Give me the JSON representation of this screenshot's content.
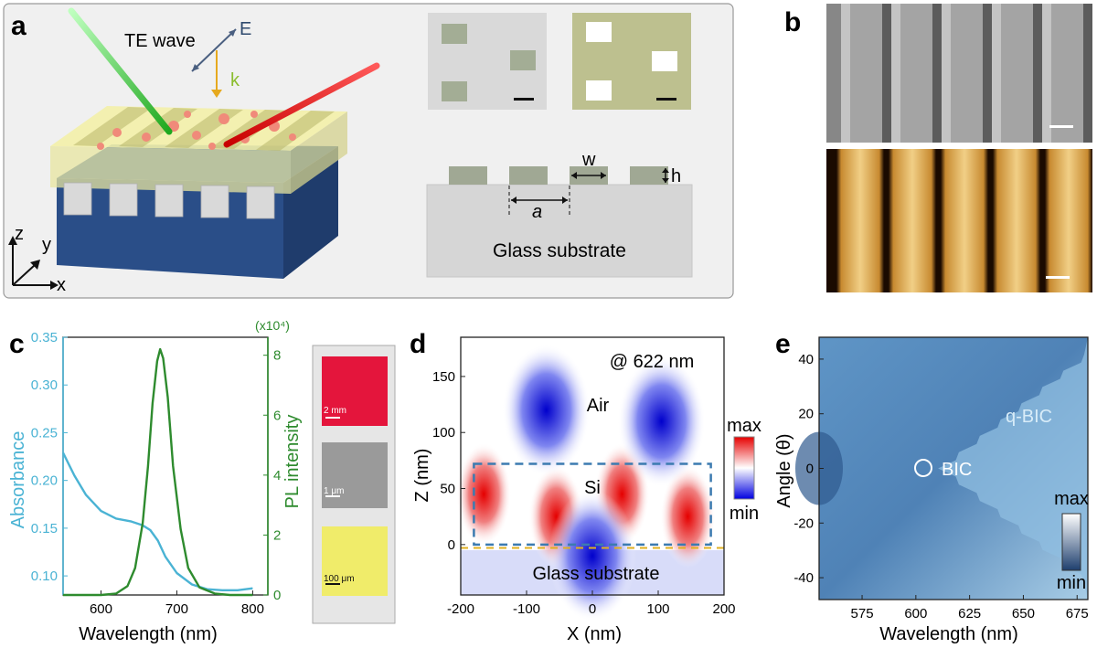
{
  "panel_labels": {
    "a": "a",
    "b": "b",
    "c": "c",
    "d": "d",
    "e": "e"
  },
  "panel_a": {
    "wave_label": "TE wave",
    "e_label": "E",
    "k_label": "k",
    "axis_z": "z",
    "axis_y": "y",
    "axis_x": "x",
    "w_label": "w",
    "h_label": "h",
    "a_label": "a",
    "substrate_label": "Glass substrate"
  },
  "panel_c": {
    "insets": [
      "2 mm",
      "1 μm",
      "100 μm"
    ],
    "colors": {
      "absorbance": "#4ab3d4",
      "pl": "#2e8b2e"
    }
  },
  "panel_d": {
    "wavelength_note": "@ 622 nm",
    "region_air": "Air",
    "region_si": "Si",
    "region_glass": "Glass substrate",
    "colorbar_max": "max",
    "colorbar_min": "min"
  },
  "panel_e": {
    "bic_label": "BIC",
    "qbic_label": "q-BIC",
    "colorbar_max": "max",
    "colorbar_min": "min"
  },
  "chart_data": [
    {
      "type": "line",
      "panel": "c",
      "xlabel": "Wavelength (nm)",
      "ylabel_left": "Absorbance",
      "ylabel_right": "PL intensity",
      "right_multiplier": "(x10⁴)",
      "xlim": [
        550,
        820
      ],
      "ylim_left": [
        0.08,
        0.35
      ],
      "ylim_right": [
        0,
        8.6
      ],
      "xticks": [
        600,
        700,
        800
      ],
      "yticks_left": [
        0.1,
        0.15,
        0.2,
        0.25,
        0.3,
        0.35
      ],
      "yticks_left_labels": [
        "0.10",
        "0.15",
        "0.20",
        "0.25",
        "0.30",
        "0.35"
      ],
      "yticks_right": [
        0,
        2,
        4,
        6,
        8
      ],
      "series": [
        {
          "name": "Absorbance",
          "axis": "left",
          "x": [
            550,
            565,
            580,
            600,
            620,
            640,
            655,
            665,
            675,
            685,
            700,
            720,
            740,
            760,
            780,
            800
          ],
          "y": [
            0.229,
            0.205,
            0.185,
            0.168,
            0.16,
            0.157,
            0.153,
            0.148,
            0.137,
            0.12,
            0.103,
            0.091,
            0.086,
            0.085,
            0.085,
            0.087
          ]
        },
        {
          "name": "PL intensity",
          "axis": "right",
          "x": [
            550,
            600,
            620,
            635,
            645,
            655,
            662,
            668,
            674,
            678,
            682,
            688,
            695,
            705,
            715,
            730,
            750,
            770,
            800
          ],
          "y": [
            0,
            0,
            0.05,
            0.3,
            0.9,
            2.4,
            4.3,
            6.4,
            7.8,
            8.2,
            7.9,
            6.6,
            4.3,
            2.2,
            0.9,
            0.25,
            0.05,
            0,
            0
          ]
        }
      ]
    },
    {
      "type": "heatmap",
      "panel": "d",
      "xlabel": "X (nm)",
      "ylabel": "Z (nm)",
      "xlim": [
        -200,
        200
      ],
      "ylim": [
        -45,
        185
      ],
      "xticks": [
        -200,
        -100,
        0,
        100,
        200
      ],
      "yticks": [
        0,
        50,
        100,
        150
      ],
      "lobes": [
        {
          "x": -165,
          "z": 45,
          "sign": "max"
        },
        {
          "x": -55,
          "z": 25,
          "sign": "max"
        },
        {
          "x": 45,
          "z": 45,
          "sign": "max"
        },
        {
          "x": 145,
          "z": 25,
          "sign": "max"
        },
        {
          "x": -70,
          "z": 120,
          "sign": "min"
        },
        {
          "x": 105,
          "z": 110,
          "sign": "min"
        },
        {
          "x": 0,
          "z": -10,
          "sign": "min"
        }
      ]
    },
    {
      "type": "heatmap",
      "panel": "e",
      "xlabel": "Wavelength (nm)",
      "ylabel": "Angle (θ)",
      "xlim": [
        555,
        680
      ],
      "ylim": [
        -48,
        48
      ],
      "xticks": [
        575,
        600,
        625,
        650,
        675
      ],
      "yticks": [
        -40,
        -20,
        0,
        20,
        40
      ],
      "bic": {
        "wavelength": 607,
        "angle": 0
      },
      "band_vertex_wavelength": 612
    }
  ]
}
